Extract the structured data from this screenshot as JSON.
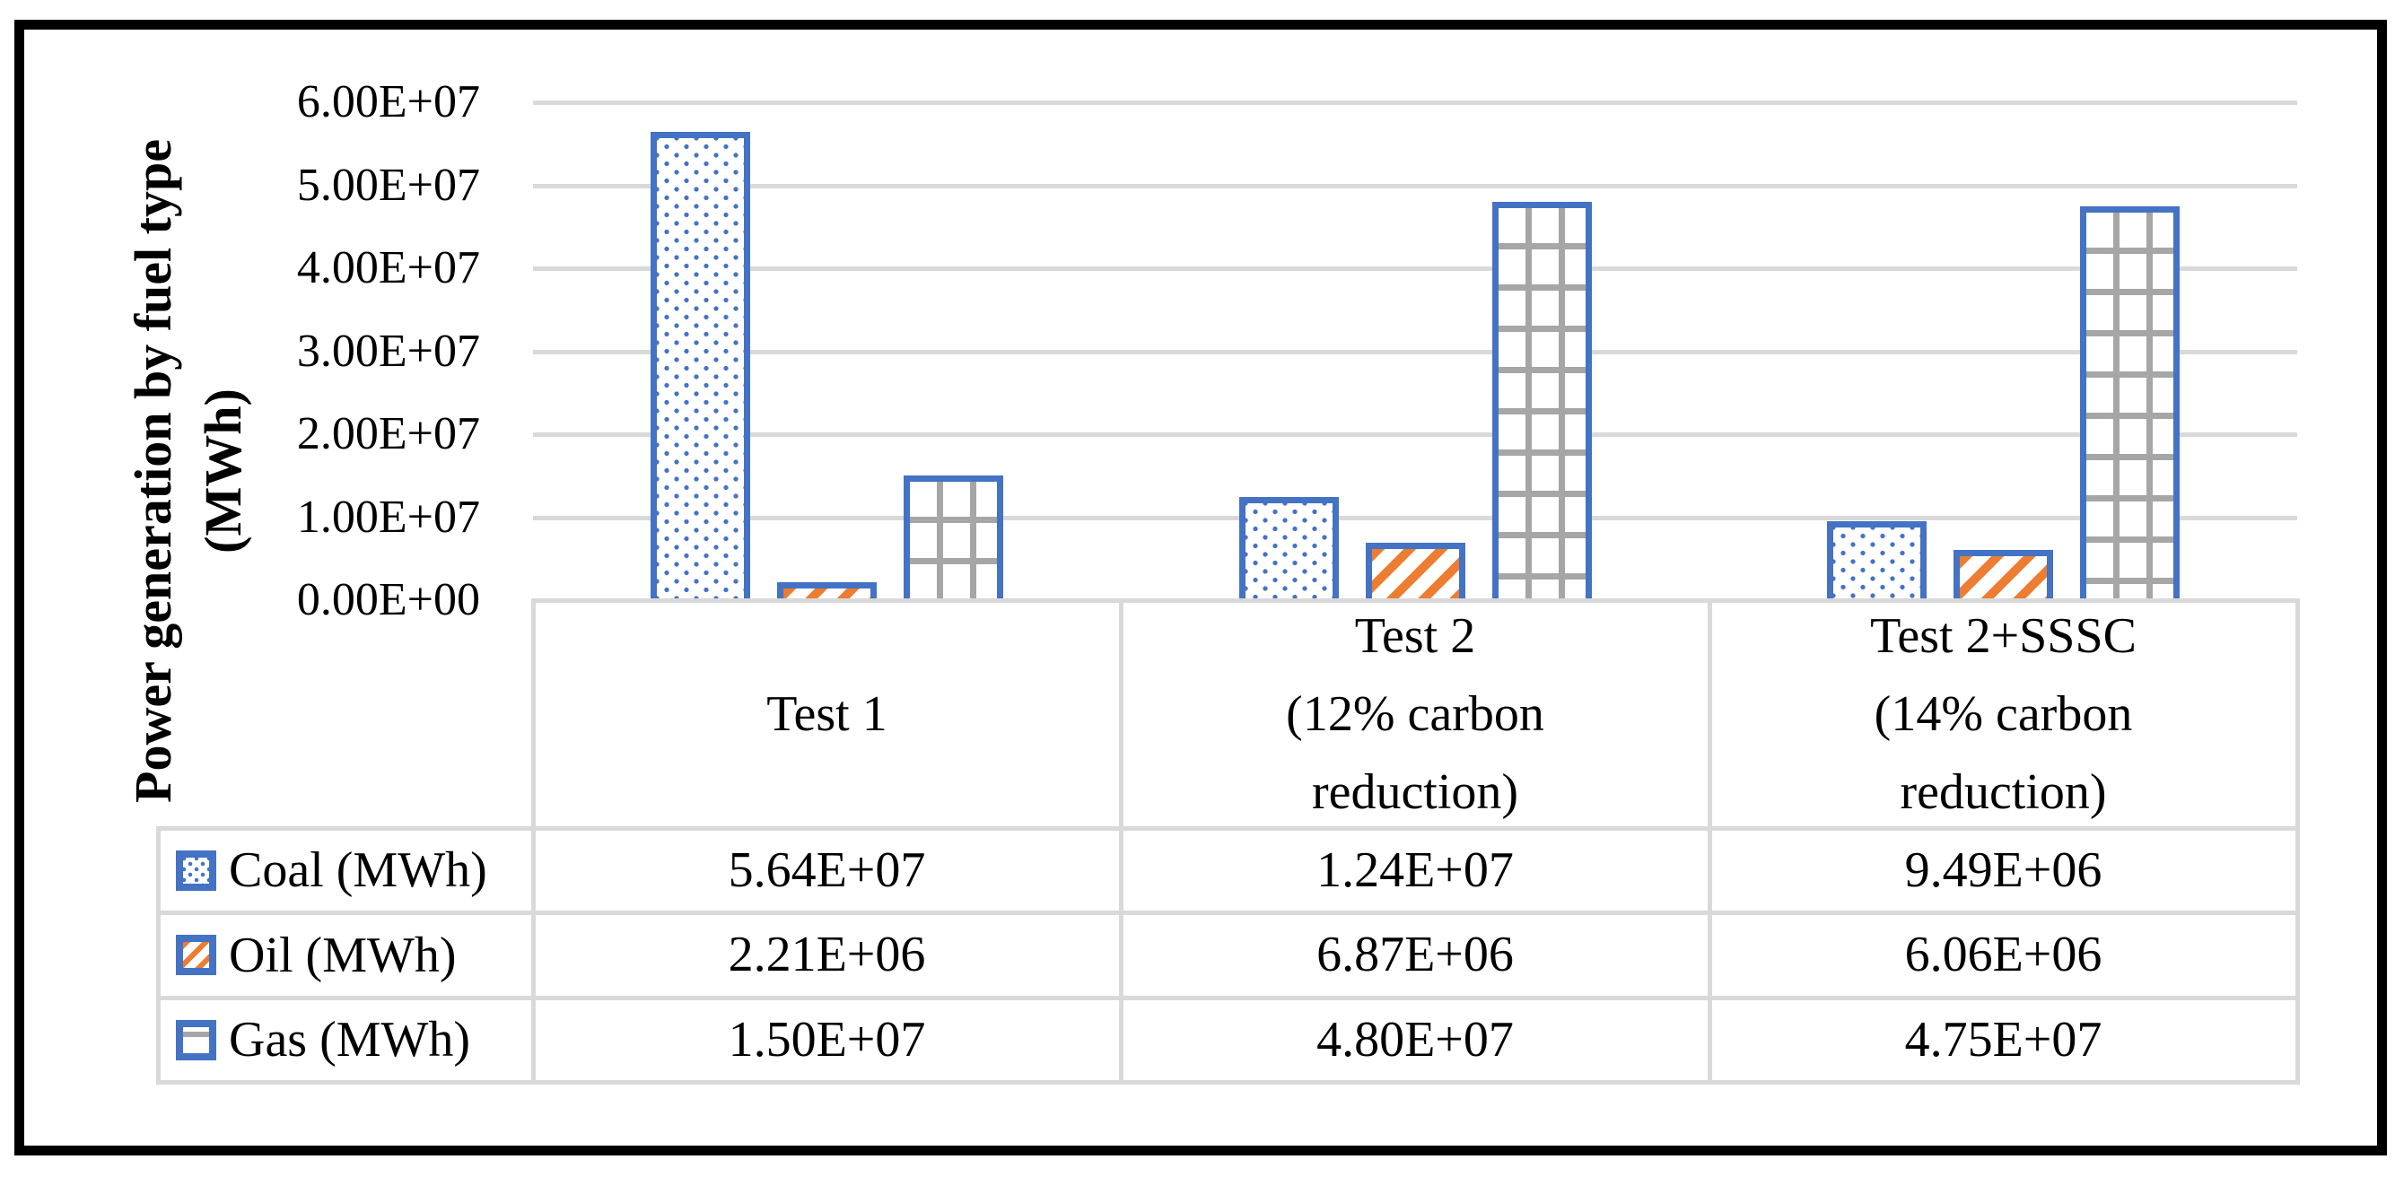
{
  "figure": {
    "type": "excel-style clustered bar chart with data table",
    "background": "#ffffff",
    "frame_color": "#000000"
  },
  "chart_data": {
    "type": "bar",
    "title": "",
    "xlabel": "",
    "ylabel": "Power generation by fuel type (MWh)",
    "ylabel_lines": [
      "Power generation by fuel type",
      "(MWh)"
    ],
    "categories": [
      "Test 1",
      "Test 2 (12% carbon reduction)",
      "Test 2+SSSC (14% carbon reduction)"
    ],
    "category_lines": [
      [
        "Test 1"
      ],
      [
        "Test 2",
        "(12% carbon",
        "reduction)"
      ],
      [
        "Test 2+SSSC",
        "(14% carbon",
        "reduction)"
      ]
    ],
    "series": [
      {
        "name": "Coal (MWh)",
        "pattern": "dots",
        "values": [
          56400000,
          12400000,
          9490000
        ],
        "labels": [
          "5.64E+07",
          "1.24E+07",
          "9.49E+06"
        ]
      },
      {
        "name": "Oil (MWh)",
        "pattern": "stripes",
        "values": [
          2210000,
          6870000,
          6060000
        ],
        "labels": [
          "2.21E+06",
          "6.87E+06",
          "6.06E+06"
        ]
      },
      {
        "name": "Gas (MWh)",
        "pattern": "grid",
        "values": [
          15000000,
          48000000,
          47500000
        ],
        "labels": [
          "1.50E+07",
          "4.80E+07",
          "4.75E+07"
        ]
      }
    ],
    "y_ticks": [
      "6.00E+07",
      "5.00E+07",
      "4.00E+07",
      "3.00E+07",
      "2.00E+07",
      "1.00E+07",
      "0.00E+00"
    ],
    "ylim": [
      0,
      60000000
    ],
    "grid": true,
    "legend_position": "table-row-headers",
    "colors": {
      "bar_border": "#4472C4",
      "coal_dots": "#4472C4",
      "oil_stripes": "#ED7D31",
      "gas_grid": "#A6A6A6",
      "gridline": "#D9D9D9",
      "text": "#000000",
      "frame": "#000000"
    }
  }
}
